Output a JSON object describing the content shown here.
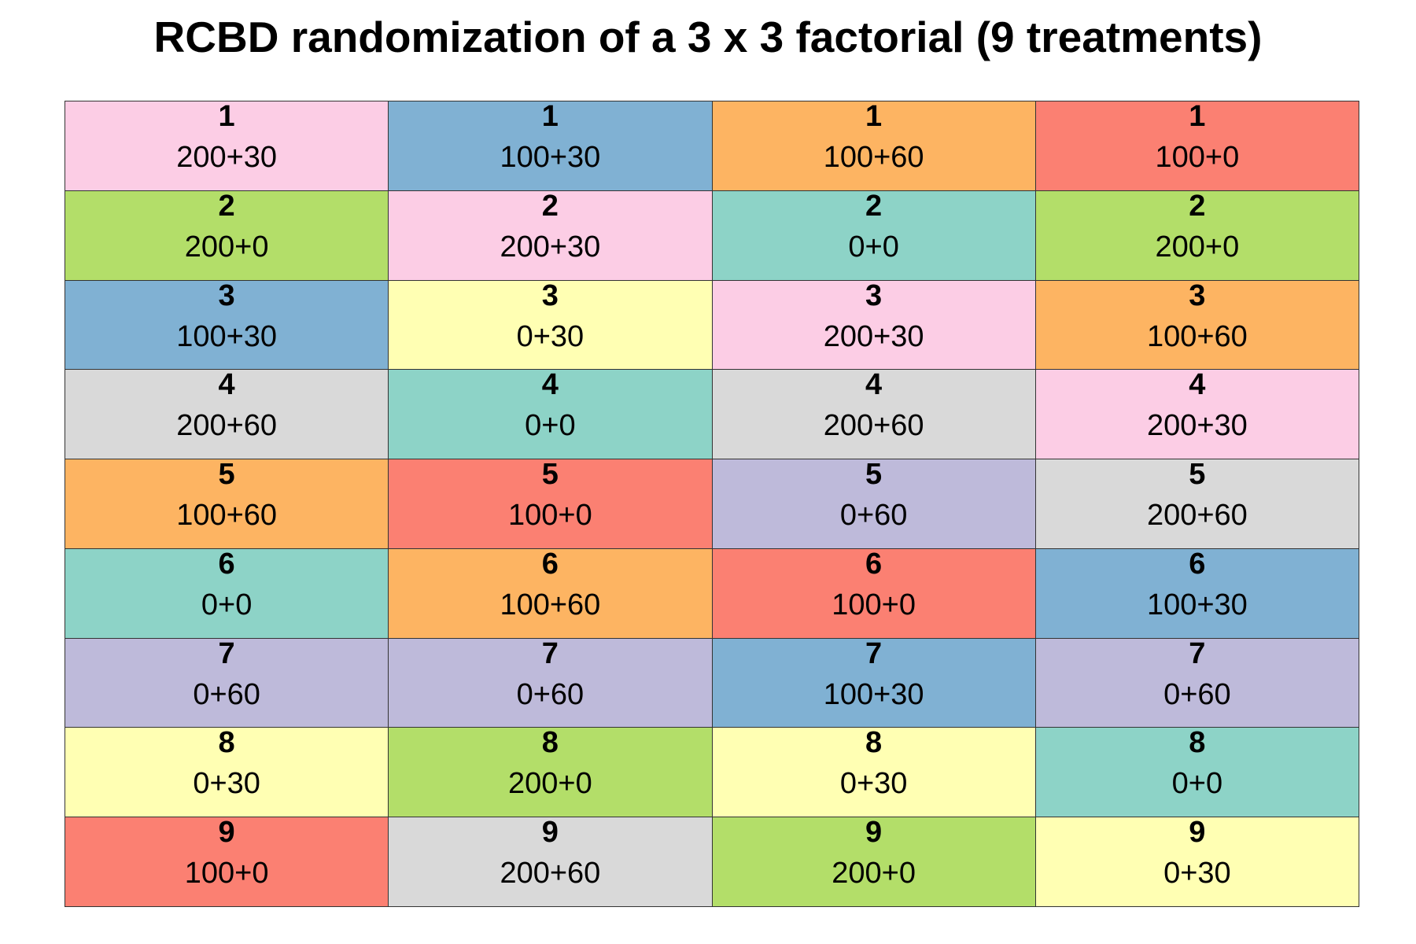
{
  "title": "RCBD randomization of a 3 x 3 factorial (9 treatments)",
  "colors": {
    "200+30": "#fccde5",
    "100+30": "#80b1d3",
    "100+60": "#fdb462",
    "100+0": "#fb8072",
    "200+0": "#b3de69",
    "0+0": "#8dd3c7",
    "0+30": "#ffffb3",
    "200+60": "#d9d9d9",
    "0+60": "#bebada"
  },
  "chart_data": {
    "type": "table",
    "blocks": 4,
    "plots_per_block": 9,
    "columns": [
      {
        "cells": [
          {
            "plot": "1",
            "treatment": "200+30"
          },
          {
            "plot": "2",
            "treatment": "200+0"
          },
          {
            "plot": "3",
            "treatment": "100+30"
          },
          {
            "plot": "4",
            "treatment": "200+60"
          },
          {
            "plot": "5",
            "treatment": "100+60"
          },
          {
            "plot": "6",
            "treatment": "0+0"
          },
          {
            "plot": "7",
            "treatment": "0+60"
          },
          {
            "plot": "8",
            "treatment": "0+30"
          },
          {
            "plot": "9",
            "treatment": "100+0"
          }
        ]
      },
      {
        "cells": [
          {
            "plot": "1",
            "treatment": "100+30"
          },
          {
            "plot": "2",
            "treatment": "200+30"
          },
          {
            "plot": "3",
            "treatment": "0+30"
          },
          {
            "plot": "4",
            "treatment": "0+0"
          },
          {
            "plot": "5",
            "treatment": "100+0"
          },
          {
            "plot": "6",
            "treatment": "100+60"
          },
          {
            "plot": "7",
            "treatment": "0+60"
          },
          {
            "plot": "8",
            "treatment": "200+0"
          },
          {
            "plot": "9",
            "treatment": "200+60"
          }
        ]
      },
      {
        "cells": [
          {
            "plot": "1",
            "treatment": "100+60"
          },
          {
            "plot": "2",
            "treatment": "0+0"
          },
          {
            "plot": "3",
            "treatment": "200+30"
          },
          {
            "plot": "4",
            "treatment": "200+60"
          },
          {
            "plot": "5",
            "treatment": "0+60"
          },
          {
            "plot": "6",
            "treatment": "100+0"
          },
          {
            "plot": "7",
            "treatment": "100+30"
          },
          {
            "plot": "8",
            "treatment": "0+30"
          },
          {
            "plot": "9",
            "treatment": "200+0"
          }
        ]
      },
      {
        "cells": [
          {
            "plot": "1",
            "treatment": "100+0"
          },
          {
            "plot": "2",
            "treatment": "200+0"
          },
          {
            "plot": "3",
            "treatment": "100+60"
          },
          {
            "plot": "4",
            "treatment": "200+30"
          },
          {
            "plot": "5",
            "treatment": "200+60"
          },
          {
            "plot": "6",
            "treatment": "100+30"
          },
          {
            "plot": "7",
            "treatment": "0+60"
          },
          {
            "plot": "8",
            "treatment": "0+0"
          },
          {
            "plot": "9",
            "treatment": "0+30"
          }
        ]
      }
    ]
  }
}
